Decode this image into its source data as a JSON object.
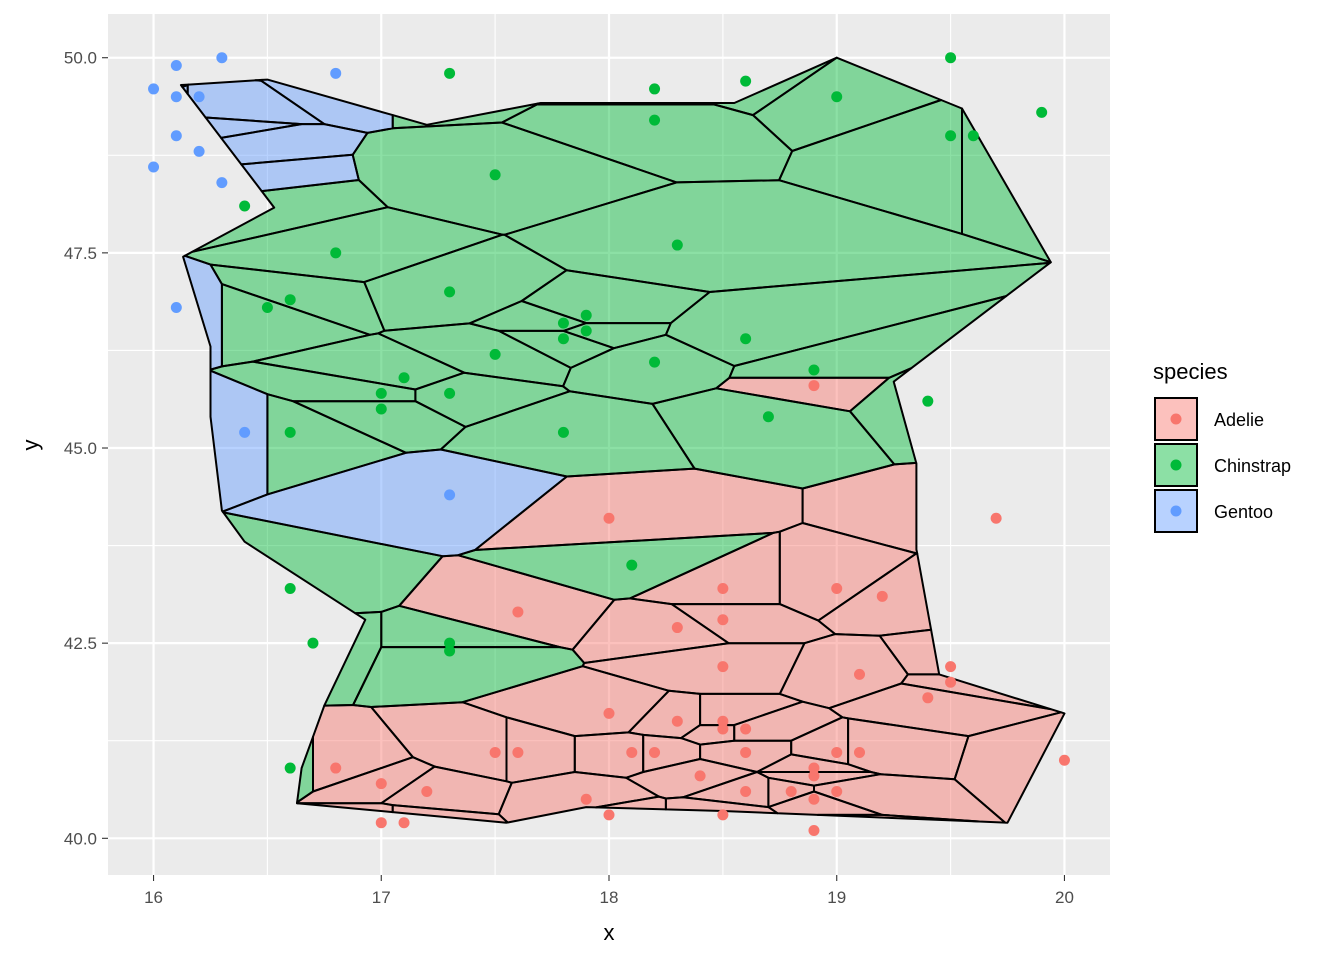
{
  "chart_data": {
    "type": "scatter",
    "overlay": "voronoi-tiles",
    "xlabel": "x",
    "ylabel": "y",
    "xlim": [
      15.8,
      20.2
    ],
    "ylim": [
      39.53,
      50.56
    ],
    "x_ticks": [
      16,
      17,
      18,
      19,
      20
    ],
    "x_tick_labels": [
      "16",
      "17",
      "18",
      "19",
      "20"
    ],
    "y_ticks": [
      40.0,
      42.5,
      45.0,
      47.5,
      50.0
    ],
    "y_tick_labels": [
      "40.0",
      "42.5",
      "45.0",
      "47.5",
      "50.0"
    ],
    "grid": true,
    "legend": {
      "title": "species",
      "position": "right",
      "entries": [
        {
          "name": "Adelie",
          "color": "#F8766D"
        },
        {
          "name": "Chinstrap",
          "color": "#00BA38"
        },
        {
          "name": "Gentoo",
          "color": "#619CFF"
        }
      ]
    },
    "series": [
      {
        "name": "Adelie",
        "color": "#F8766D",
        "points": [
          [
            18.9,
            45.8
          ],
          [
            18.0,
            44.1
          ],
          [
            19.7,
            44.1
          ],
          [
            18.5,
            43.2
          ],
          [
            19.0,
            43.2
          ],
          [
            19.2,
            43.1
          ],
          [
            17.6,
            42.9
          ],
          [
            18.5,
            42.8
          ],
          [
            18.3,
            42.7
          ],
          [
            18.5,
            42.2
          ],
          [
            19.5,
            42.2
          ],
          [
            19.1,
            42.1
          ],
          [
            19.5,
            42.0
          ],
          [
            19.4,
            41.8
          ],
          [
            18.0,
            41.6
          ],
          [
            18.3,
            41.5
          ],
          [
            18.5,
            41.5
          ],
          [
            18.5,
            41.4
          ],
          [
            18.6,
            41.4
          ],
          [
            17.5,
            41.1
          ],
          [
            17.6,
            41.1
          ],
          [
            18.1,
            41.1
          ],
          [
            18.2,
            41.1
          ],
          [
            18.6,
            41.1
          ],
          [
            19.0,
            41.1
          ],
          [
            19.1,
            41.1
          ],
          [
            20.0,
            41.0
          ],
          [
            16.8,
            40.9
          ],
          [
            18.9,
            40.9
          ],
          [
            18.9,
            40.8
          ],
          [
            18.4,
            40.8
          ],
          [
            17.0,
            40.7
          ],
          [
            17.2,
            40.6
          ],
          [
            18.6,
            40.6
          ],
          [
            18.8,
            40.6
          ],
          [
            19.0,
            40.6
          ],
          [
            17.9,
            40.5
          ],
          [
            18.9,
            40.5
          ],
          [
            18.0,
            40.3
          ],
          [
            18.5,
            40.3
          ],
          [
            17.0,
            40.2
          ],
          [
            17.1,
            40.2
          ],
          [
            18.9,
            40.1
          ]
        ]
      },
      {
        "name": "Chinstrap",
        "color": "#00BA38",
        "points": [
          [
            19.5,
            50.0
          ],
          [
            17.3,
            49.8
          ],
          [
            18.6,
            49.7
          ],
          [
            18.2,
            49.6
          ],
          [
            19.0,
            49.5
          ],
          [
            19.9,
            49.3
          ],
          [
            18.2,
            49.2
          ],
          [
            19.5,
            49.0
          ],
          [
            19.6,
            49.0
          ],
          [
            17.5,
            48.5
          ],
          [
            16.4,
            48.1
          ],
          [
            16.8,
            47.5
          ],
          [
            18.3,
            47.6
          ],
          [
            17.3,
            47.0
          ],
          [
            16.6,
            46.9
          ],
          [
            16.5,
            46.8
          ],
          [
            17.9,
            46.7
          ],
          [
            17.8,
            46.6
          ],
          [
            17.9,
            46.5
          ],
          [
            17.8,
            46.4
          ],
          [
            18.6,
            46.4
          ],
          [
            17.5,
            46.2
          ],
          [
            18.2,
            46.1
          ],
          [
            18.9,
            46.0
          ],
          [
            17.1,
            45.9
          ],
          [
            17.0,
            45.7
          ],
          [
            17.3,
            45.7
          ],
          [
            19.4,
            45.6
          ],
          [
            17.0,
            45.5
          ],
          [
            18.7,
            45.4
          ],
          [
            16.6,
            45.2
          ],
          [
            17.8,
            45.2
          ],
          [
            18.1,
            43.5
          ],
          [
            16.6,
            43.2
          ],
          [
            16.7,
            42.5
          ],
          [
            17.3,
            42.5
          ],
          [
            17.3,
            42.4
          ],
          [
            16.6,
            40.9
          ]
        ]
      },
      {
        "name": "Gentoo",
        "color": "#619CFF",
        "points": [
          [
            16.3,
            50.0
          ],
          [
            16.1,
            49.9
          ],
          [
            16.8,
            49.8
          ],
          [
            16.0,
            49.6
          ],
          [
            16.1,
            49.5
          ],
          [
            16.2,
            49.5
          ],
          [
            16.1,
            49.0
          ],
          [
            16.2,
            48.8
          ],
          [
            16.0,
            48.6
          ],
          [
            16.3,
            48.4
          ],
          [
            16.1,
            46.8
          ],
          [
            16.4,
            45.2
          ],
          [
            17.3,
            44.4
          ]
        ]
      }
    ]
  }
}
